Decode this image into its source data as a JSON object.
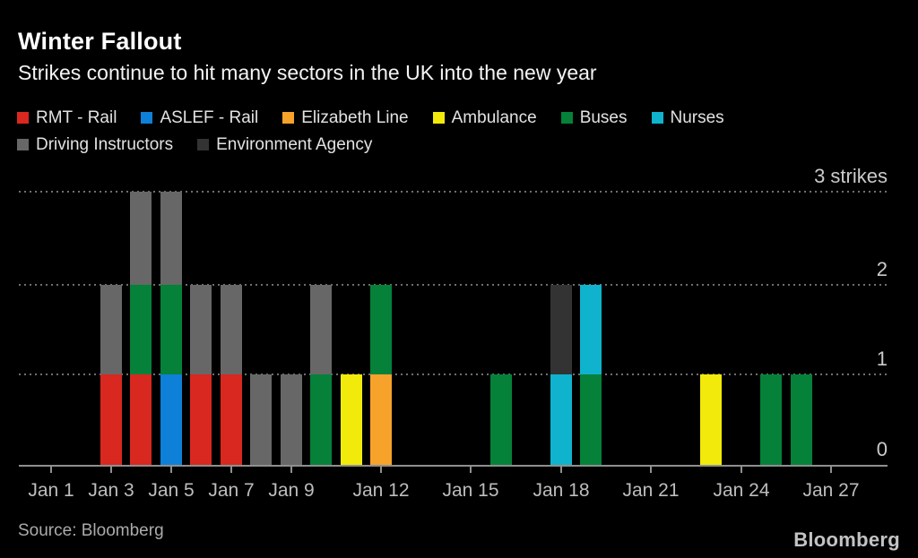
{
  "header": {
    "title": "Winter Fallout",
    "subtitle": "Strikes continue to hit many sectors in the UK into the new year"
  },
  "footer": {
    "source": "Source: Bloomberg",
    "logo": "Bloomberg"
  },
  "chart_data": {
    "type": "bar",
    "stacked": true,
    "title": "Winter Fallout",
    "subtitle": "Strikes continue to hit many sectors in the UK into the new year",
    "background": "#000000",
    "unit": "strikes",
    "segment_value": 1,
    "legend_position": "top",
    "legend_rows": [
      6,
      2
    ],
    "grid": "dotted-horizontal",
    "y_axis": {
      "side": "right",
      "min": 0,
      "max": 3,
      "ticks": [
        {
          "value": 0,
          "label": "0"
        },
        {
          "value": 1,
          "label": "1"
        },
        {
          "value": 2,
          "label": "2"
        },
        {
          "value": 3,
          "label": "3 strikes"
        }
      ]
    },
    "x_axis": {
      "ticks": [
        {
          "day": 1,
          "label": "Jan 1"
        },
        {
          "day": 3,
          "label": "Jan 3"
        },
        {
          "day": 5,
          "label": "Jan 5"
        },
        {
          "day": 7,
          "label": "Jan 7"
        },
        {
          "day": 9,
          "label": "Jan 9"
        },
        {
          "day": 12,
          "label": "Jan 12"
        },
        {
          "day": 15,
          "label": "Jan 15"
        },
        {
          "day": 18,
          "label": "Jan 18"
        },
        {
          "day": 21,
          "label": "Jan 21"
        },
        {
          "day": 24,
          "label": "Jan 24"
        },
        {
          "day": 27,
          "label": "Jan 27"
        }
      ]
    },
    "series": [
      {
        "name": "RMT - Rail",
        "color": "#d8281f"
      },
      {
        "name": "ASLEF - Rail",
        "color": "#0e80d8"
      },
      {
        "name": "Elizabeth Line",
        "color": "#f7a22b"
      },
      {
        "name": "Ambulance",
        "color": "#f2ea0a"
      },
      {
        "name": "Buses",
        "color": "#058139"
      },
      {
        "name": "Nurses",
        "color": "#0fb3cd"
      },
      {
        "name": "Driving Instructors",
        "color": "#676767"
      },
      {
        "name": "Environment Agency",
        "color": "#333333"
      }
    ],
    "bars": [
      {
        "date": "Jan 3",
        "day": 3,
        "total": 2,
        "stack": [
          "RMT - Rail",
          "Driving Instructors"
        ]
      },
      {
        "date": "Jan 4",
        "day": 4,
        "total": 3,
        "stack": [
          "RMT - Rail",
          "Buses",
          "Driving Instructors"
        ]
      },
      {
        "date": "Jan 5",
        "day": 5,
        "total": 3,
        "stack": [
          "ASLEF - Rail",
          "Buses",
          "Driving Instructors"
        ]
      },
      {
        "date": "Jan 6",
        "day": 6,
        "total": 2,
        "stack": [
          "RMT - Rail",
          "Driving Instructors"
        ]
      },
      {
        "date": "Jan 7",
        "day": 7,
        "total": 2,
        "stack": [
          "RMT - Rail",
          "Driving Instructors"
        ]
      },
      {
        "date": "Jan 8",
        "day": 8,
        "total": 1,
        "stack": [
          "Driving Instructors"
        ]
      },
      {
        "date": "Jan 9",
        "day": 9,
        "total": 1,
        "stack": [
          "Driving Instructors"
        ]
      },
      {
        "date": "Jan 10",
        "day": 10,
        "total": 2,
        "stack": [
          "Buses",
          "Driving Instructors"
        ]
      },
      {
        "date": "Jan 11",
        "day": 11,
        "total": 1,
        "stack": [
          "Ambulance"
        ]
      },
      {
        "date": "Jan 12",
        "day": 12,
        "total": 2,
        "stack": [
          "Elizabeth Line",
          "Buses"
        ]
      },
      {
        "date": "Jan 16",
        "day": 16,
        "total": 1,
        "stack": [
          "Buses"
        ]
      },
      {
        "date": "Jan 18",
        "day": 18,
        "total": 2,
        "stack": [
          "Nurses",
          "Environment Agency"
        ]
      },
      {
        "date": "Jan 19",
        "day": 19,
        "total": 2,
        "stack": [
          "Buses",
          "Nurses"
        ]
      },
      {
        "date": "Jan 23",
        "day": 23,
        "total": 1,
        "stack": [
          "Ambulance"
        ]
      },
      {
        "date": "Jan 25",
        "day": 25,
        "total": 1,
        "stack": [
          "Buses"
        ]
      },
      {
        "date": "Jan 26",
        "day": 26,
        "total": 1,
        "stack": [
          "Buses"
        ]
      }
    ]
  }
}
